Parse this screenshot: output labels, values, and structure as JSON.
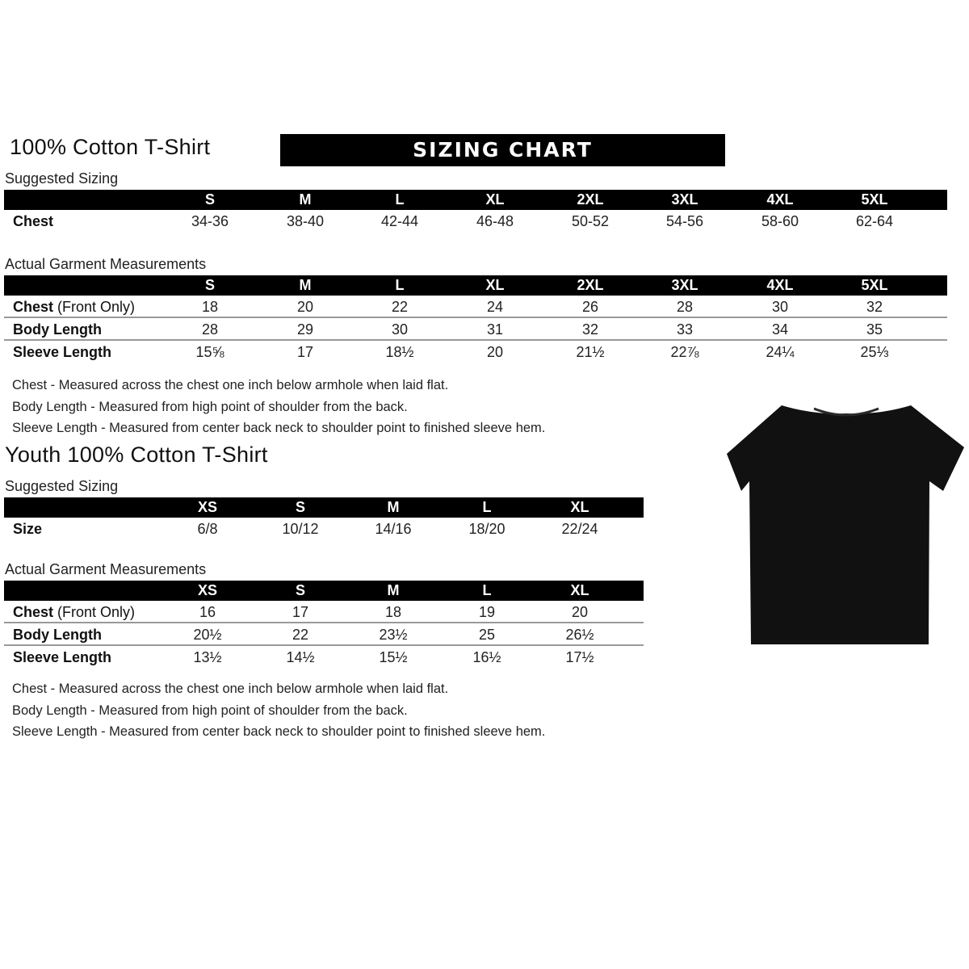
{
  "adult": {
    "title": "100% Cotton T-Shirt",
    "banner": "SIZING CHART",
    "suggested": {
      "heading": "Suggested Sizing",
      "sizes": [
        "S",
        "M",
        "L",
        "XL",
        "2XL",
        "3XL",
        "4XL",
        "5XL"
      ],
      "rows": [
        {
          "label": "Chest",
          "values": [
            "34-36",
            "38-40",
            "42-44",
            "46-48",
            "50-52",
            "54-56",
            "58-60",
            "62-64"
          ]
        }
      ]
    },
    "actual": {
      "heading": "Actual Garment Measurements",
      "sizes": [
        "S",
        "M",
        "L",
        "XL",
        "2XL",
        "3XL",
        "4XL",
        "5XL"
      ],
      "rows": [
        {
          "label": "Chest",
          "label_note": "(Front Only)",
          "values": [
            "18",
            "20",
            "22",
            "24",
            "26",
            "28",
            "30",
            "32"
          ]
        },
        {
          "label": "Body Length",
          "values": [
            "28",
            "29",
            "30",
            "31",
            "32",
            "33",
            "34",
            "35"
          ]
        },
        {
          "label": "Sleeve Length",
          "values": [
            "15⅝",
            "17",
            "18½",
            "20",
            "21½",
            "22⅞",
            "24¼",
            "25⅓"
          ]
        }
      ]
    },
    "notes": [
      "Chest - Measured across the chest one inch below armhole when laid flat.",
      "Body Length - Measured from high point of shoulder from the back.",
      "Sleeve Length - Measured from center back neck to shoulder point to finished sleeve hem."
    ]
  },
  "youth": {
    "title": "Youth 100% Cotton T-Shirt",
    "suggested": {
      "heading": "Suggested Sizing",
      "sizes": [
        "XS",
        "S",
        "M",
        "L",
        "XL"
      ],
      "rows": [
        {
          "label": "Size",
          "values": [
            "6/8",
            "10/12",
            "14/16",
            "18/20",
            "22/24"
          ]
        }
      ]
    },
    "actual": {
      "heading": "Actual Garment Measurements",
      "sizes": [
        "XS",
        "S",
        "M",
        "L",
        "XL"
      ],
      "rows": [
        {
          "label": "Chest",
          "label_note": "(Front Only)",
          "values": [
            "16",
            "17",
            "18",
            "19",
            "20"
          ]
        },
        {
          "label": "Body Length",
          "values": [
            "20½",
            "22",
            "23½",
            "25",
            "26½"
          ]
        },
        {
          "label": "Sleeve Length",
          "values": [
            "13½",
            "14½",
            "15½",
            "16½",
            "17½"
          ]
        }
      ]
    },
    "notes": [
      "Chest - Measured across the chest one inch below armhole when laid flat.",
      "Body Length - Measured from high point of shoulder from the back.",
      "Sleeve Length - Measured from center back neck to shoulder point to finished sleeve hem."
    ]
  },
  "image": {
    "icon": "tshirt-icon",
    "color": "#111111"
  }
}
